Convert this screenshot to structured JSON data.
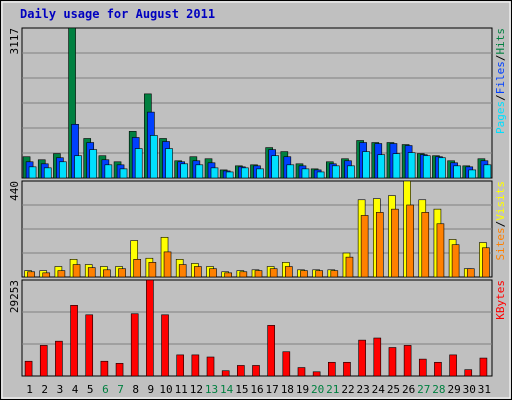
{
  "chart_data": [
    {
      "type": "bar",
      "title": "Daily usage for August 2011",
      "categories": [
        "1",
        "2",
        "3",
        "4",
        "5",
        "6",
        "7",
        "8",
        "9",
        "10",
        "11",
        "12",
        "13",
        "14",
        "15",
        "16",
        "17",
        "18",
        "19",
        "20",
        "21",
        "22",
        "23",
        "24",
        "25",
        "26",
        "27",
        "28",
        "29",
        "30",
        "31"
      ],
      "highlight_categories": [
        "6",
        "7",
        "13",
        "14",
        "20",
        "21",
        "27",
        "28"
      ],
      "highlight_color": "#008040",
      "legend_separator": "/",
      "ylim": [
        0,
        3117
      ],
      "yticks": [
        3117
      ],
      "series": [
        {
          "name": "Hits",
          "color": "#008040",
          "values": [
            442,
            379,
            505,
            3117,
            821,
            463,
            337,
            969,
            1748,
            821,
            358,
            442,
            400,
            168,
            253,
            274,
            632,
            548,
            295,
            190,
            337,
            400,
            779,
            737,
            737,
            695,
            505,
            463,
            358,
            253,
            400
          ]
        },
        {
          "name": "Files",
          "color": "#0040ff",
          "values": [
            337,
            295,
            421,
            1116,
            737,
            379,
            274,
            842,
            1369,
            758,
            337,
            358,
            316,
            147,
            232,
            253,
            590,
            442,
            253,
            168,
            295,
            358,
            737,
            716,
            716,
            674,
            484,
            442,
            316,
            232,
            358
          ]
        },
        {
          "name": "Pages",
          "color": "#00e0ff",
          "values": [
            232,
            211,
            337,
            463,
            590,
            274,
            190,
            611,
            884,
            611,
            295,
            274,
            211,
            126,
            211,
            190,
            463,
            274,
            190,
            126,
            253,
            253,
            548,
            484,
            505,
            527,
            463,
            421,
            253,
            168,
            274
          ]
        }
      ]
    },
    {
      "type": "bar",
      "ylim": [
        0,
        440
      ],
      "yticks": [
        440
      ],
      "series": [
        {
          "name": "Visits",
          "color": "#ffff00",
          "values": [
            29,
            29,
            48,
            81,
            57,
            48,
            48,
            167,
            86,
            182,
            81,
            62,
            48,
            24,
            29,
            33,
            48,
            67,
            33,
            33,
            33,
            110,
            354,
            359,
            373,
            440,
            354,
            311,
            172,
            38,
            158
          ]
        },
        {
          "name": "Sites",
          "color": "#ff8000",
          "values": [
            24,
            19,
            29,
            57,
            43,
            33,
            38,
            81,
            67,
            115,
            57,
            48,
            38,
            19,
            24,
            29,
            38,
            48,
            29,
            29,
            29,
            91,
            282,
            296,
            311,
            330,
            296,
            244,
            148,
            38,
            134
          ]
        }
      ]
    },
    {
      "type": "bar",
      "ylim": [
        0,
        29253
      ],
      "yticks": [
        29253
      ],
      "series": [
        {
          "name": "KBytes",
          "color": "#ff0000",
          "values": [
            4501,
            9323,
            10610,
            21538,
            18646,
            4501,
            3858,
            18967,
            29253,
            18646,
            6430,
            6430,
            5787,
            1608,
            3215,
            3215,
            15431,
            7394,
            2572,
            1286,
            4179,
            4179,
            10930,
            11573,
            8680,
            9323,
            5144,
            4179,
            6430,
            1929,
            5465
          ]
        }
      ]
    }
  ]
}
